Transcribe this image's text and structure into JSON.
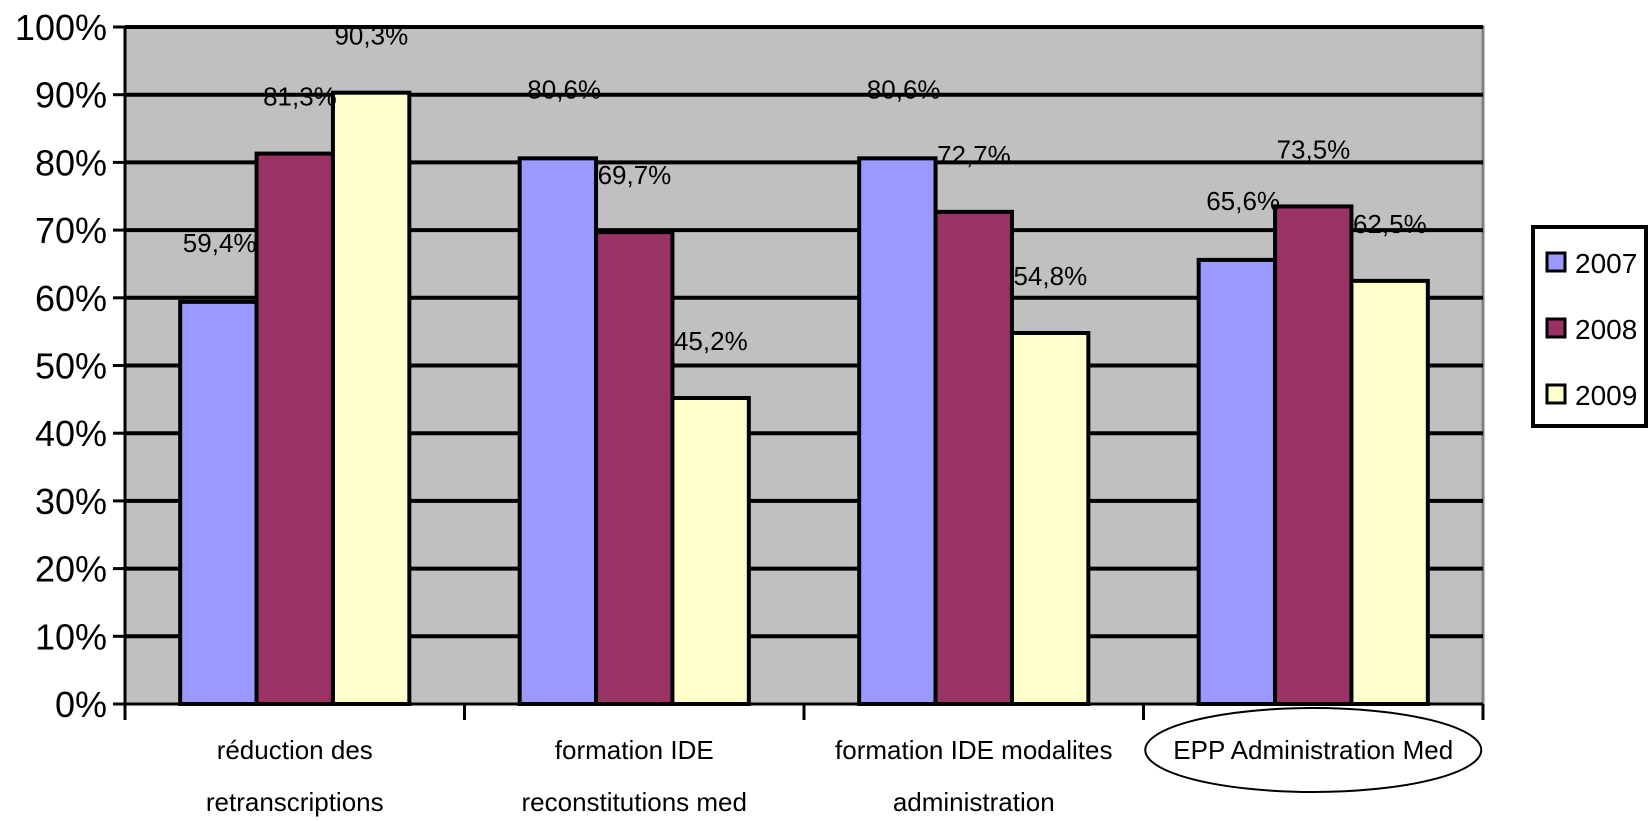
{
  "chart_data": {
    "type": "bar",
    "title": "",
    "xlabel": "",
    "ylabel": "",
    "ylim": [
      0,
      100
    ],
    "y_ticks": [
      "0%",
      "10%",
      "20%",
      "30%",
      "40%",
      "50%",
      "60%",
      "70%",
      "80%",
      "90%",
      "100%"
    ],
    "grid": true,
    "legend_position": "right",
    "categories": [
      [
        "réduction des",
        "retranscriptions"
      ],
      [
        "formation IDE",
        "reconstitutions med"
      ],
      [
        "formation IDE modalites",
        "administration"
      ],
      [
        "EPP Administration Med"
      ]
    ],
    "highlighted_category": "EPP Administration Med",
    "series": [
      {
        "name": "2007",
        "color": "#9999ff",
        "values": [
          59.4,
          80.6,
          80.6,
          65.6
        ],
        "labels": [
          "59,4%",
          "80,6%",
          "80,6%",
          "65,6%"
        ]
      },
      {
        "name": "2008",
        "color": "#993366",
        "values": [
          81.3,
          69.7,
          72.7,
          73.5
        ],
        "labels": [
          "81,3%",
          "69,7%",
          "72,7%",
          "73,5%"
        ]
      },
      {
        "name": "2009",
        "color": "#ffffcc",
        "values": [
          90.3,
          45.2,
          54.8,
          62.5
        ],
        "labels": [
          "90,3%",
          "45,2%",
          "54,8%",
          "62,5%"
        ]
      }
    ],
    "plot_background": "#c0c0c0"
  }
}
